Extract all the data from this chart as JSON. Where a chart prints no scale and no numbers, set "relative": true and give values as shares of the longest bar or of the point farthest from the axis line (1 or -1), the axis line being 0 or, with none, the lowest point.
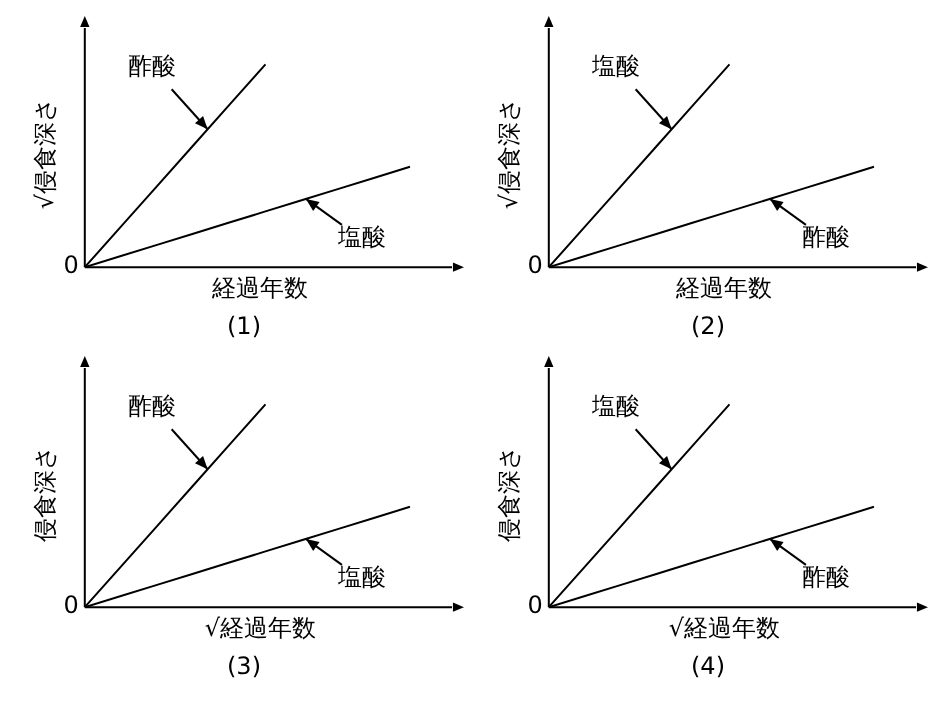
{
  "chart_data": [
    {
      "type": "line",
      "relative": true,
      "xlabel": "経過年数",
      "ylabel": "√侵食深さ",
      "annotations": [
        "0",
        "(1)"
      ],
      "categories": [
        null,
        null,
        null,
        null,
        null,
        null,
        null,
        null,
        null,
        null
      ],
      "series": [
        {
          "name": "酢酸",
          "color": "#000000",
          "values": [
            0,
            0.2,
            0.4,
            0.6,
            0.8,
            1,
            null,
            null,
            null,
            null
          ]
        },
        {
          "name": "塩酸",
          "color": "#000000",
          "values": [
            0,
            0.055,
            0.11,
            0.165,
            0.22,
            0.275,
            0.33,
            0.385,
            0.44,
            0.495
          ]
        }
      ]
    },
    {
      "type": "line",
      "relative": true,
      "xlabel": "経過年数",
      "ylabel": "√侵食深さ",
      "annotations": [
        "0",
        "(2)"
      ],
      "categories": [
        null,
        null,
        null,
        null,
        null,
        null,
        null,
        null,
        null,
        null
      ],
      "series": [
        {
          "name": "塩酸",
          "color": "#000000",
          "values": [
            0,
            0.2,
            0.4,
            0.6,
            0.8,
            1,
            null,
            null,
            null,
            null
          ]
        },
        {
          "name": "酢酸",
          "color": "#000000",
          "values": [
            0,
            0.055,
            0.11,
            0.165,
            0.22,
            0.275,
            0.33,
            0.385,
            0.44,
            0.495
          ]
        }
      ]
    },
    {
      "type": "line",
      "relative": true,
      "xlabel": "√経過年数",
      "ylabel": "侵食深さ",
      "annotations": [
        "0",
        "(3)"
      ],
      "categories": [
        null,
        null,
        null,
        null,
        null,
        null,
        null,
        null,
        null,
        null
      ],
      "series": [
        {
          "name": "酢酸",
          "color": "#000000",
          "values": [
            0,
            0.2,
            0.4,
            0.6,
            0.8,
            1,
            null,
            null,
            null,
            null
          ]
        },
        {
          "name": "塩酸",
          "color": "#000000",
          "values": [
            0,
            0.055,
            0.11,
            0.165,
            0.22,
            0.275,
            0.33,
            0.385,
            0.44,
            0.495
          ]
        }
      ]
    },
    {
      "type": "line",
      "relative": true,
      "xlabel": "√経過年数",
      "ylabel": "侵食深さ",
      "annotations": [
        "0",
        "(4)"
      ],
      "categories": [
        null,
        null,
        null,
        null,
        null,
        null,
        null,
        null,
        null,
        null
      ],
      "series": [
        {
          "name": "塩酸",
          "color": "#000000",
          "values": [
            0,
            0.2,
            0.4,
            0.6,
            0.8,
            1,
            null,
            null,
            null,
            null
          ]
        },
        {
          "name": "酢酸",
          "color": "#000000",
          "values": [
            0,
            0.055,
            0.11,
            0.165,
            0.22,
            0.275,
            0.33,
            0.385,
            0.44,
            0.495
          ]
        }
      ]
    }
  ]
}
